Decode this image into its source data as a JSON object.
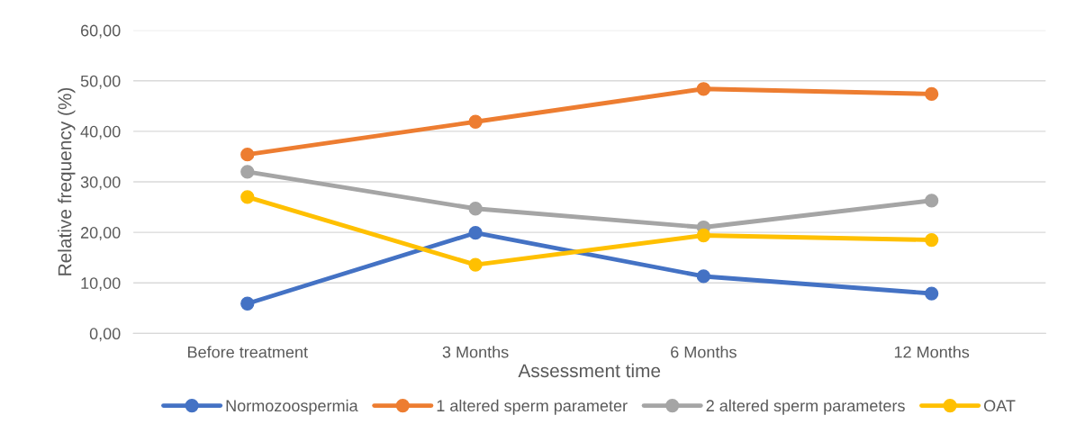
{
  "chart_data": {
    "type": "line",
    "xlabel": "Assessment time",
    "ylabel": "Relative frequency (%)",
    "categories": [
      "Before treatment",
      "3 Months",
      "6 Months",
      "12 Months"
    ],
    "series": [
      {
        "name": "Normozoospermia",
        "color": "#4472c4",
        "values": [
          5.9,
          19.9,
          11.3,
          7.9
        ]
      },
      {
        "name": "1 altered sperm parameter",
        "color": "#ed7d31",
        "values": [
          35.4,
          41.9,
          48.4,
          47.4
        ]
      },
      {
        "name": "2 altered sperm parameters",
        "color": "#a5a5a5",
        "values": [
          32.0,
          24.7,
          21.0,
          26.3
        ]
      },
      {
        "name": "OAT",
        "color": "#ffc000",
        "values": [
          27.0,
          13.6,
          19.4,
          18.5
        ]
      }
    ],
    "ylim": [
      0,
      60
    ],
    "yticks": [
      {
        "value": 0,
        "label": "0,00"
      },
      {
        "value": 10,
        "label": "10,00"
      },
      {
        "value": 20,
        "label": "20,00"
      },
      {
        "value": 30,
        "label": "30,00"
      },
      {
        "value": 40,
        "label": "40,00"
      },
      {
        "value": 50,
        "label": "50,00"
      },
      {
        "value": 60,
        "label": "60,00"
      }
    ],
    "grid": "y",
    "legend": "bottom",
    "marker": "circle",
    "line_style": "solid"
  }
}
